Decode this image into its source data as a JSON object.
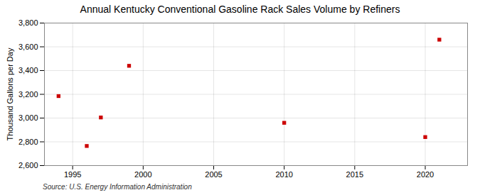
{
  "chart_data": {
    "type": "scatter",
    "title": "Annual Kentucky Conventional Gasoline Rack Sales Volume by Refiners",
    "ylabel": "Thousand Gallons per Day",
    "source": "Source: U.S. Energy Information Administration",
    "x": [
      1994,
      1996,
      1997,
      1999,
      2010,
      2020,
      2021
    ],
    "values": [
      3185,
      2765,
      3005,
      3440,
      2960,
      2840,
      3660
    ],
    "color": "#cc0000",
    "marker": "square",
    "xlim": [
      1993.0,
      2023.0
    ],
    "ylim": [
      2600,
      3800
    ],
    "xticks": [
      1995,
      2000,
      2005,
      2010,
      2015,
      2020
    ],
    "yticks": [
      {
        "value": 2600,
        "label": "2,600"
      },
      {
        "value": 2800,
        "label": "2,800"
      },
      {
        "value": 3000,
        "label": "3,000"
      },
      {
        "value": 3200,
        "label": "3,200"
      },
      {
        "value": 3400,
        "label": "3,400"
      },
      {
        "value": 3600,
        "label": "3,600"
      },
      {
        "value": 3800,
        "label": "3,800"
      }
    ],
    "grid": true
  }
}
